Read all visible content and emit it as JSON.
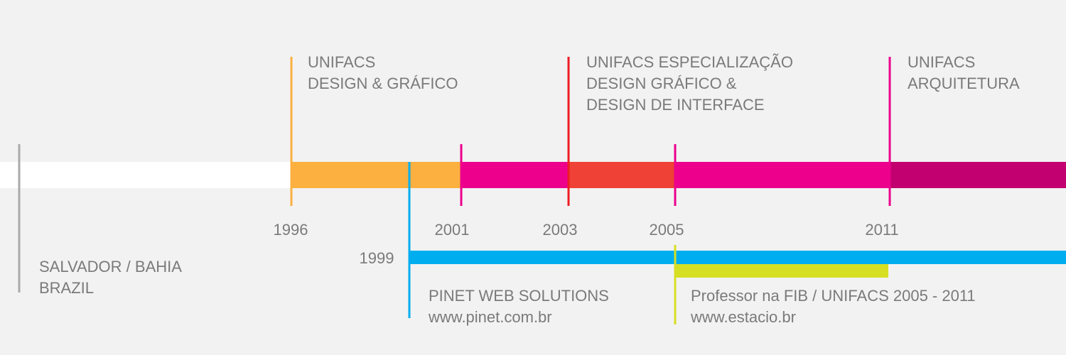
{
  "origin": {
    "lines": [
      "SALVADOR / BAHIA",
      "BRAZIL"
    ]
  },
  "years": {
    "y1996": "1996",
    "y1999": "1999",
    "y2001": "2001",
    "y2003": "2003",
    "y2005": "2005",
    "y2011": "2011"
  },
  "education": [
    {
      "lines": [
        "UNIFACS",
        "DESIGN & GRÁFICO"
      ]
    },
    {
      "lines": [
        "UNIFACS ESPECIALIZAÇÃO",
        "DESIGN GRÁFICO &",
        "DESIGN DE INTERFACE"
      ]
    },
    {
      "lines": [
        "UNIFACS",
        "ARQUITETURA"
      ]
    }
  ],
  "work": [
    {
      "lines": [
        "PINET WEB SOLUTIONS",
        "www.pinet.com.br"
      ]
    },
    {
      "lines": [
        "Professor na FIB / UNIFACS 2005 - 2011",
        "www.estacio.br"
      ]
    }
  ]
}
